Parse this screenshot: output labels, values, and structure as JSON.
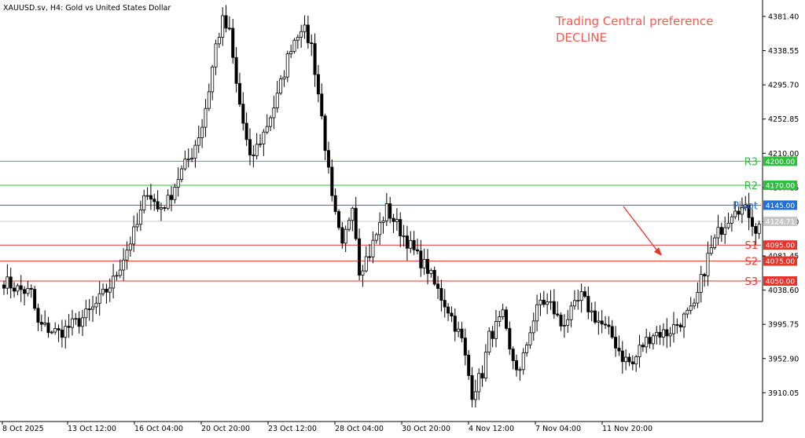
{
  "header": {
    "symbol": "XAUUSD.sv",
    "timeframe": "H4",
    "description": "Gold vs United States Dollar"
  },
  "annotation": {
    "line1": "Trading Central preference",
    "line2": "DECLINE",
    "color": "#f25b4f"
  },
  "chart_data": {
    "type": "candlestick",
    "ylim": [
      3875,
      4400
    ],
    "y_ticks": [
      "4381.40",
      "4338.55",
      "4295.70",
      "4252.85",
      "4210.00",
      "4167.15",
      "4124.30",
      "4081.45",
      "4038.60",
      "3995.75",
      "3952.90",
      "3910.05"
    ],
    "x_ticks": [
      "8 Oct 2025",
      "13 Oct 12:00",
      "16 Oct 04:00",
      "20 Oct 20:00",
      "23 Oct 12:00",
      "28 Oct 04:00",
      "30 Oct 20:00",
      "4 Nov 12:00",
      "7 Nov 04:00",
      "11 Nov 20:00"
    ],
    "current_price": "4124.71",
    "levels": [
      {
        "name": "R3",
        "value": 4200.0,
        "label": "4200.00",
        "color": "#2fbf3f"
      },
      {
        "name": "R2",
        "value": 4170.0,
        "label": "4170.00",
        "color": "#2fbf3f"
      },
      {
        "name": "Pivot",
        "value": 4145.0,
        "label": "4145.00",
        "color": "#1e6fd9"
      },
      {
        "name": "S1",
        "value": 4095.0,
        "label": "4095.00",
        "color": "#e8322a"
      },
      {
        "name": "S2",
        "value": 4075.0,
        "label": "4075.00",
        "color": "#e8322a"
      },
      {
        "name": "S3",
        "value": 4050.0,
        "label": "4050.00",
        "color": "#e8322a"
      }
    ],
    "close_path": [
      [
        0,
        4050
      ],
      [
        4,
        4040
      ],
      [
        8,
        4035
      ],
      [
        10,
        3995
      ],
      [
        16,
        3985
      ],
      [
        22,
        4000
      ],
      [
        26,
        4015
      ],
      [
        32,
        4050
      ],
      [
        36,
        4090
      ],
      [
        39,
        4120
      ],
      [
        42,
        4165
      ],
      [
        45,
        4140
      ],
      [
        48,
        4150
      ],
      [
        51,
        4180
      ],
      [
        55,
        4210
      ],
      [
        58,
        4245
      ],
      [
        60,
        4290
      ],
      [
        62,
        4345
      ],
      [
        64,
        4375
      ],
      [
        66,
        4360
      ],
      [
        68,
        4295
      ],
      [
        72,
        4200
      ],
      [
        76,
        4235
      ],
      [
        80,
        4280
      ],
      [
        84,
        4345
      ],
      [
        87,
        4370
      ],
      [
        90,
        4345
      ],
      [
        93,
        4255
      ],
      [
        96,
        4150
      ],
      [
        99,
        4090
      ],
      [
        102,
        4150
      ],
      [
        104,
        4065
      ],
      [
        107,
        4085
      ],
      [
        110,
        4120
      ],
      [
        112,
        4140
      ],
      [
        115,
        4120
      ],
      [
        118,
        4100
      ],
      [
        121,
        4080
      ],
      [
        124,
        4065
      ],
      [
        126,
        4045
      ],
      [
        130,
        4015
      ],
      [
        134,
        3975
      ],
      [
        137,
        3910
      ],
      [
        140,
        3935
      ],
      [
        142,
        3980
      ],
      [
        146,
        4005
      ],
      [
        148,
        3960
      ],
      [
        151,
        3935
      ],
      [
        154,
        3990
      ],
      [
        157,
        4025
      ],
      [
        160,
        4020
      ],
      [
        163,
        3995
      ],
      [
        166,
        4010
      ],
      [
        169,
        4030
      ],
      [
        172,
        4010
      ],
      [
        175,
        3995
      ],
      [
        178,
        3980
      ],
      [
        181,
        3955
      ],
      [
        184,
        3945
      ],
      [
        186,
        3965
      ],
      [
        190,
        3985
      ],
      [
        194,
        3985
      ],
      [
        198,
        4000
      ],
      [
        202,
        4015
      ],
      [
        204,
        4050
      ],
      [
        206,
        4080
      ],
      [
        209,
        4110
      ],
      [
        212,
        4130
      ],
      [
        214,
        4145
      ],
      [
        216,
        4140
      ],
      [
        218,
        4135
      ],
      [
        220,
        4115
      ],
      [
        221,
        4118
      ]
    ],
    "candle_count": 222
  }
}
